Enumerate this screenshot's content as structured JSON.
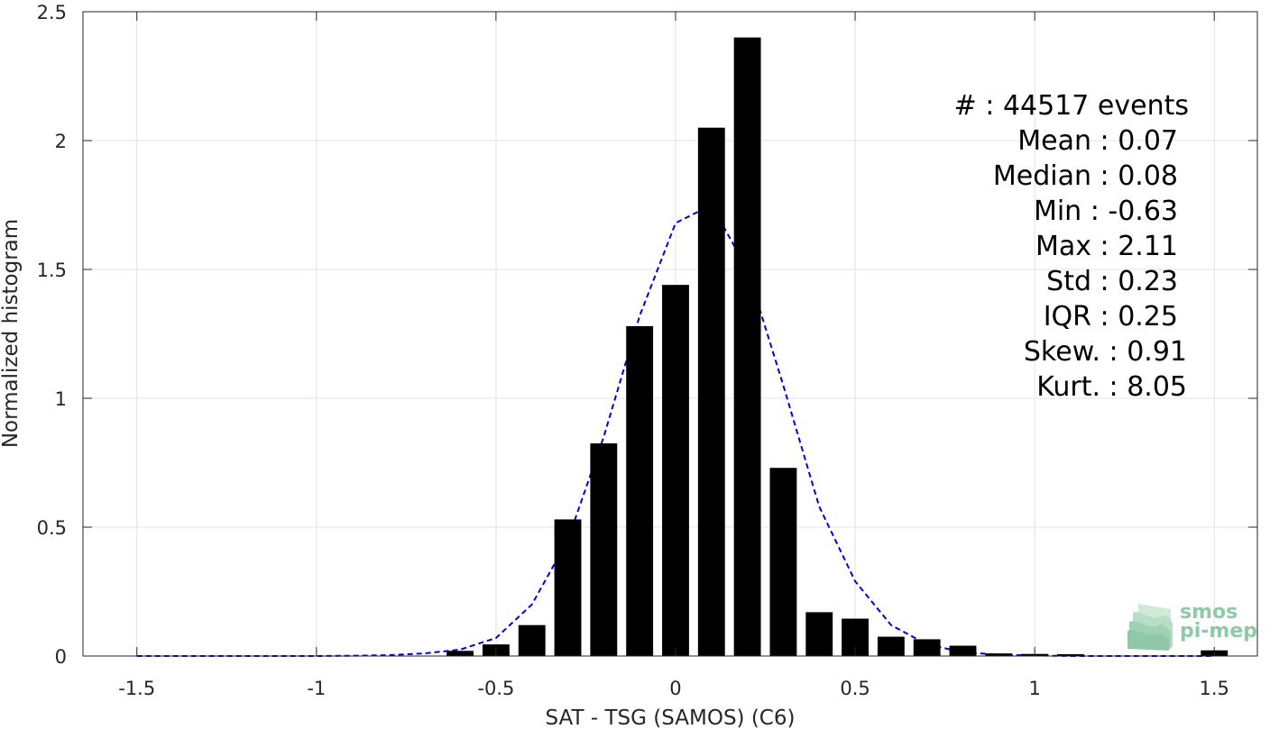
{
  "chart_data": {
    "type": "bar",
    "xlabel": "SAT - TSG (SAMOS) (C6)",
    "ylabel": "Normalized histogram",
    "xlim": [
      -1.65,
      1.62
    ],
    "ylim": [
      0,
      2.5
    ],
    "xticks": [
      -1.5,
      -1,
      -0.5,
      0,
      0.5,
      1,
      1.5
    ],
    "xtick_labels": [
      "-1.5",
      "-1",
      "-0.5",
      "0",
      "0.5",
      "1",
      "1.5"
    ],
    "yticks": [
      0,
      0.5,
      1,
      1.5,
      2,
      2.5
    ],
    "ytick_labels": [
      "0",
      "0.5",
      "1",
      "1.5",
      "2",
      "2.5"
    ],
    "grid": true,
    "bar_width": 0.075,
    "bar_color": "#000000",
    "bars": [
      {
        "x": -0.6,
        "y": 0.02
      },
      {
        "x": -0.5,
        "y": 0.045
      },
      {
        "x": -0.4,
        "y": 0.12
      },
      {
        "x": -0.3,
        "y": 0.53
      },
      {
        "x": -0.2,
        "y": 0.825
      },
      {
        "x": -0.1,
        "y": 1.28
      },
      {
        "x": 0.0,
        "y": 1.44
      },
      {
        "x": 0.1,
        "y": 2.05
      },
      {
        "x": 0.2,
        "y": 2.4
      },
      {
        "x": 0.3,
        "y": 0.73
      },
      {
        "x": 0.4,
        "y": 0.17
      },
      {
        "x": 0.5,
        "y": 0.145
      },
      {
        "x": 0.6,
        "y": 0.075
      },
      {
        "x": 0.7,
        "y": 0.065
      },
      {
        "x": 0.8,
        "y": 0.04
      },
      {
        "x": 0.9,
        "y": 0.01
      },
      {
        "x": 1.0,
        "y": 0.008
      },
      {
        "x": 1.1,
        "y": 0.007
      },
      {
        "x": 1.5,
        "y": 0.022
      }
    ],
    "fit_curve": {
      "style": "dashed",
      "color": "#0000dd",
      "x": [
        -1.5,
        -1.4,
        -1.3,
        -1.2,
        -1.1,
        -1.0,
        -0.9,
        -0.8,
        -0.7,
        -0.6,
        -0.5,
        -0.4,
        -0.3,
        -0.2,
        -0.1,
        0.0,
        0.1,
        0.2,
        0.3,
        0.4,
        0.5,
        0.6,
        0.7,
        0.8,
        0.9,
        1.0,
        1.1,
        1.2,
        1.3,
        1.4,
        1.5
      ],
      "y": [
        0,
        0,
        0,
        0,
        0,
        0,
        0.001,
        0.003,
        0.01,
        0.025,
        0.07,
        0.2,
        0.45,
        0.85,
        1.32,
        1.68,
        1.75,
        1.5,
        1.05,
        0.58,
        0.29,
        0.12,
        0.045,
        0.015,
        0.005,
        0.002,
        0,
        0,
        0,
        0,
        0
      ]
    },
    "stats": [
      {
        "label": "#  ",
        "value": ": 44517 events"
      },
      {
        "label": "Mean",
        "value": ": 0.07"
      },
      {
        "label": "Median",
        "value": ": 0.08"
      },
      {
        "label": "Min",
        "value": ": -0.63"
      },
      {
        "label": "Max",
        "value": ": 2.11"
      },
      {
        "label": "Std",
        "value": ": 0.23"
      },
      {
        "label": "IQR",
        "value": ": 0.25"
      },
      {
        "label": "Skew.",
        "value": ": 0.91"
      },
      {
        "label": "Kurt.",
        "value": ": 8.05"
      }
    ]
  },
  "logo": {
    "line1": "smos",
    "line2": "pi-mep",
    "color": "#8fc9a6"
  }
}
